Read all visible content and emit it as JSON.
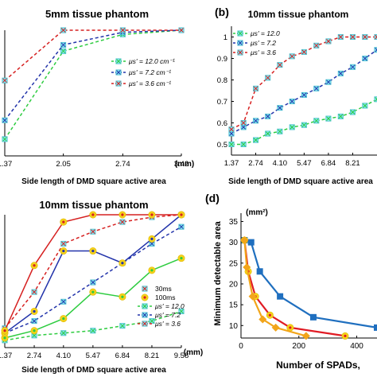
{
  "chart_data": [
    {
      "id": "a",
      "panel_label": "",
      "type": "line",
      "title": "5mm tissue phantom",
      "xlabel": "Side length of DMD square active area",
      "x_unit": "(mm)",
      "x": [
        1.37,
        2.05,
        2.74,
        3.42
      ],
      "xticks": [
        "1.37",
        "2.05",
        "2.74",
        "3.42"
      ],
      "xlim": [
        1.37,
        3.42
      ],
      "ylim": [
        0.4,
        1.0
      ],
      "yticks": [],
      "series": [
        {
          "name": "μs' = 12.0 cm⁻¹",
          "color": "#2ecc40",
          "dash": true,
          "marker": "x",
          "values": [
            0.48,
            0.9,
            0.98,
            1.0
          ]
        },
        {
          "name": "μs' = 7.2 cm⁻¹",
          "color": "#2233aa",
          "dash": true,
          "marker": "x",
          "values": [
            0.57,
            0.93,
            0.99,
            1.0
          ]
        },
        {
          "name": "μs' = 3.6 cm⁻¹",
          "color": "#d62020",
          "dash": true,
          "marker": "x",
          "values": [
            0.76,
            1.0,
            1.0,
            1.0
          ]
        }
      ]
    },
    {
      "id": "b",
      "panel_label": "(b)",
      "type": "line",
      "title": "10mm tissue phantom",
      "xlabel": "Side length of DMD square active area",
      "x_unit": "",
      "x": [
        1.37,
        2.05,
        2.74,
        3.42,
        4.1,
        4.79,
        5.47,
        6.16,
        6.84,
        7.53,
        8.21,
        8.9,
        9.58
      ],
      "xticks": [
        "1.37",
        "2.74",
        "4.10",
        "5.47",
        "6.84",
        "8.21"
      ],
      "xlim": [
        1.37,
        9.58
      ],
      "ylim": [
        0.45,
        1.05
      ],
      "yticks": [
        "0.5",
        "0.6",
        "0.7",
        "0.8",
        "0.9",
        "1"
      ],
      "series": [
        {
          "name": "μs' = 12.0",
          "color": "#2ecc40",
          "dash": true,
          "marker": "x",
          "values": [
            0.5,
            0.5,
            0.52,
            0.55,
            0.56,
            0.58,
            0.59,
            0.61,
            0.62,
            0.63,
            0.65,
            0.68,
            0.71
          ]
        },
        {
          "name": "μs' = 7.2",
          "color": "#2233aa",
          "dash": true,
          "marker": "x",
          "values": [
            0.55,
            0.58,
            0.61,
            0.63,
            0.67,
            0.7,
            0.73,
            0.76,
            0.79,
            0.83,
            0.86,
            0.9,
            0.94
          ]
        },
        {
          "name": "μs' = 3.6",
          "color": "#d62020",
          "dash": true,
          "marker": "x",
          "values": [
            0.57,
            0.6,
            0.76,
            0.81,
            0.87,
            0.91,
            0.93,
            0.96,
            0.98,
            1.0,
            1.0,
            1.0,
            1.0
          ]
        }
      ]
    },
    {
      "id": "c",
      "panel_label": "",
      "type": "line",
      "title": "10mm tissue phantom",
      "xlabel": "Side length of DMD square active area",
      "x_unit": "(mm)",
      "x": [
        1.37,
        2.74,
        4.1,
        5.47,
        6.84,
        8.21,
        9.58
      ],
      "xticks": [
        "1.37",
        "2.74",
        "4.10",
        "5.47",
        "6.84",
        "8.21",
        "9.58"
      ],
      "xlim": [
        1.37,
        9.58
      ],
      "ylim": [
        0.45,
        1.0
      ],
      "yticks": [],
      "marker_legend": [
        {
          "name": "30ms",
          "marker": "x"
        },
        {
          "name": "100ms",
          "marker": "dot"
        }
      ],
      "series": [
        {
          "name": "μs' = 12.0",
          "color": "#2ecc40",
          "dash": true,
          "marker": "x",
          "values": [
            0.48,
            0.5,
            0.51,
            0.52,
            0.54,
            0.56,
            0.6
          ]
        },
        {
          "name": "μs' = 7.2",
          "color": "#2233aa",
          "dash": true,
          "marker": "x",
          "values": [
            0.51,
            0.56,
            0.64,
            0.72,
            0.8,
            0.88,
            0.95
          ]
        },
        {
          "name": "μs' = 3.6",
          "color": "#d62020",
          "dash": true,
          "marker": "x",
          "values": [
            0.53,
            0.68,
            0.88,
            0.93,
            0.97,
            0.99,
            1.0
          ]
        },
        {
          "name": "",
          "color": "#2ecc40",
          "dash": false,
          "marker": "dot",
          "values": [
            0.49,
            0.52,
            0.57,
            0.68,
            0.66,
            0.77,
            0.82
          ]
        },
        {
          "name": "",
          "color": "#2233aa",
          "dash": false,
          "marker": "dot",
          "values": [
            0.51,
            0.6,
            0.85,
            0.85,
            0.8,
            0.9,
            1.0
          ]
        },
        {
          "name": "",
          "color": "#d62020",
          "dash": false,
          "marker": "dot",
          "values": [
            0.52,
            0.79,
            0.97,
            1.0,
            1.0,
            1.0,
            1.0
          ]
        }
      ]
    },
    {
      "id": "d",
      "panel_label": "(d)",
      "type": "line",
      "title": "",
      "xlabel": "Number of SPADs,",
      "ylabel": "Minimum detectable area",
      "y_unit": "(mm²)",
      "xticks": [
        "0",
        "200",
        "400"
      ],
      "yticks": [
        "10",
        "15",
        "20",
        "25",
        "30",
        "35"
      ],
      "xlim": [
        0,
        470
      ],
      "ylim": [
        7,
        37
      ],
      "series": [
        {
          "name": "",
          "color": "#1f6fbf",
          "dash": false,
          "marker": "square",
          "x": [
            12,
            35,
            65,
            135,
            250,
            470
          ],
          "y": [
            30.5,
            30,
            23,
            17,
            12,
            9.5
          ]
        },
        {
          "name": "",
          "color": "#e01b24",
          "dash": false,
          "marker": "dot",
          "x": [
            12,
            25,
            50,
            100,
            170,
            360
          ],
          "y": [
            30.5,
            23,
            17,
            12.5,
            9.5,
            7.5
          ]
        },
        {
          "name": "",
          "color": "#f2a51a",
          "dash": false,
          "marker": "diamond",
          "x": [
            12,
            20,
            40,
            75,
            120,
            225
          ],
          "y": [
            30.5,
            24,
            17,
            11.5,
            9.5,
            7.5
          ]
        }
      ]
    }
  ]
}
